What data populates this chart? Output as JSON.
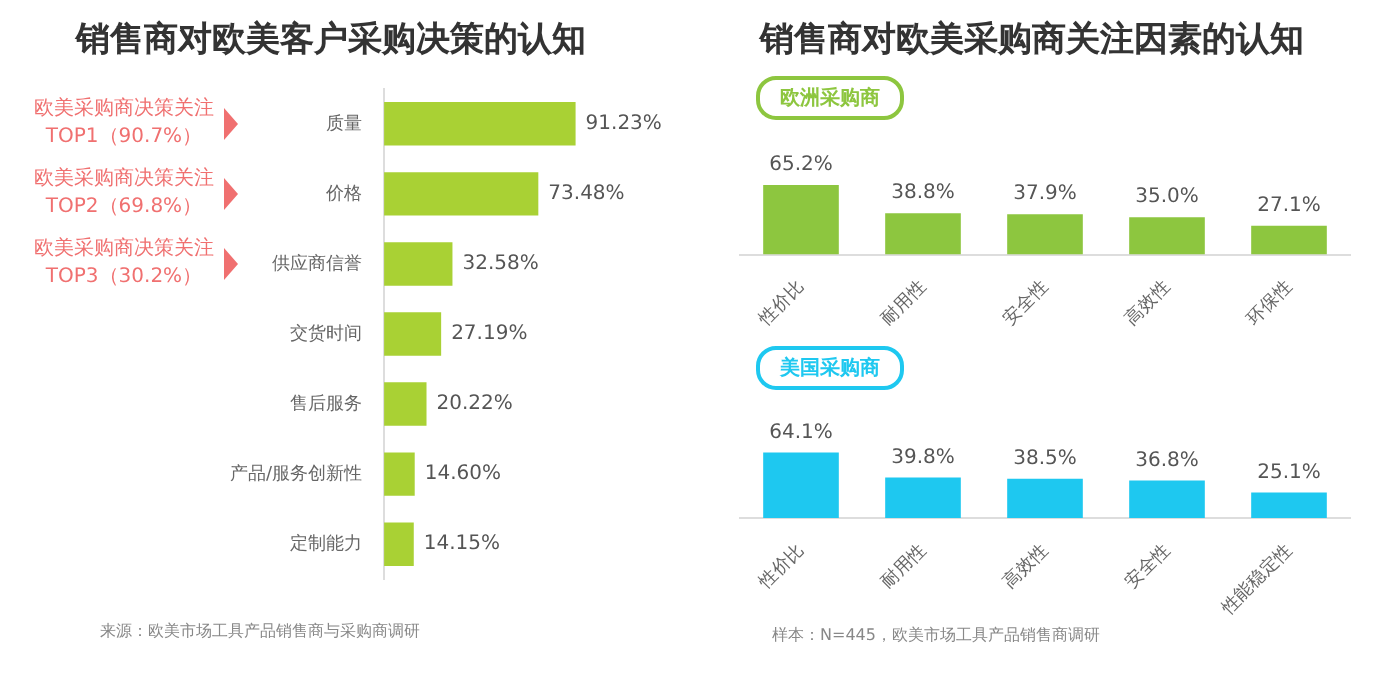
{
  "chart_data": [
    {
      "type": "bar",
      "orientation": "horizontal",
      "title": "销售商对欧美客户采购决策的认知",
      "categories": [
        "质量",
        "价格",
        "供应商信誉",
        "交货时间",
        "售后服务",
        "产品/服务创新性",
        "定制能力"
      ],
      "values": [
        91.23,
        73.48,
        32.58,
        27.19,
        20.22,
        14.6,
        14.15
      ],
      "value_labels": [
        "91.23%",
        "73.48%",
        "32.58%",
        "27.19%",
        "20.22%",
        "14.60%",
        "14.15%"
      ],
      "color": "#a9d134",
      "annotations": [
        "欧美采购商决策关注\nTOP1（90.7%）",
        "欧美采购商决策关注\nTOP2（69.8%）",
        "欧美采购商决策关注\nTOP3（30.2%）",
        "来源：欧美市场工具产品销售商与采购商调研"
      ]
    },
    {
      "type": "bar",
      "title": "销售商对欧美采购商关注因素的认知",
      "subtitle": "欧洲采购商",
      "categories": [
        "性价比",
        "耐用性",
        "安全性",
        "高效性",
        "环保性"
      ],
      "values": [
        65.2,
        38.8,
        37.9,
        35.0,
        27.1
      ],
      "value_labels": [
        "65.2%",
        "38.8%",
        "37.9%",
        "35.0%",
        "27.1%"
      ],
      "color": "#8dc63f"
    },
    {
      "type": "bar",
      "subtitle": "美国采购商",
      "categories": [
        "性价比",
        "耐用性",
        "高效性",
        "安全性",
        "性能稳定性"
      ],
      "values": [
        64.1,
        39.8,
        38.5,
        36.8,
        25.1
      ],
      "value_labels": [
        "64.1%",
        "39.8%",
        "38.5%",
        "36.8%",
        "25.1%"
      ],
      "color": "#1ec8f0",
      "annotations": [
        "样本：N=445，欧美市场工具产品销售商调研"
      ]
    }
  ]
}
